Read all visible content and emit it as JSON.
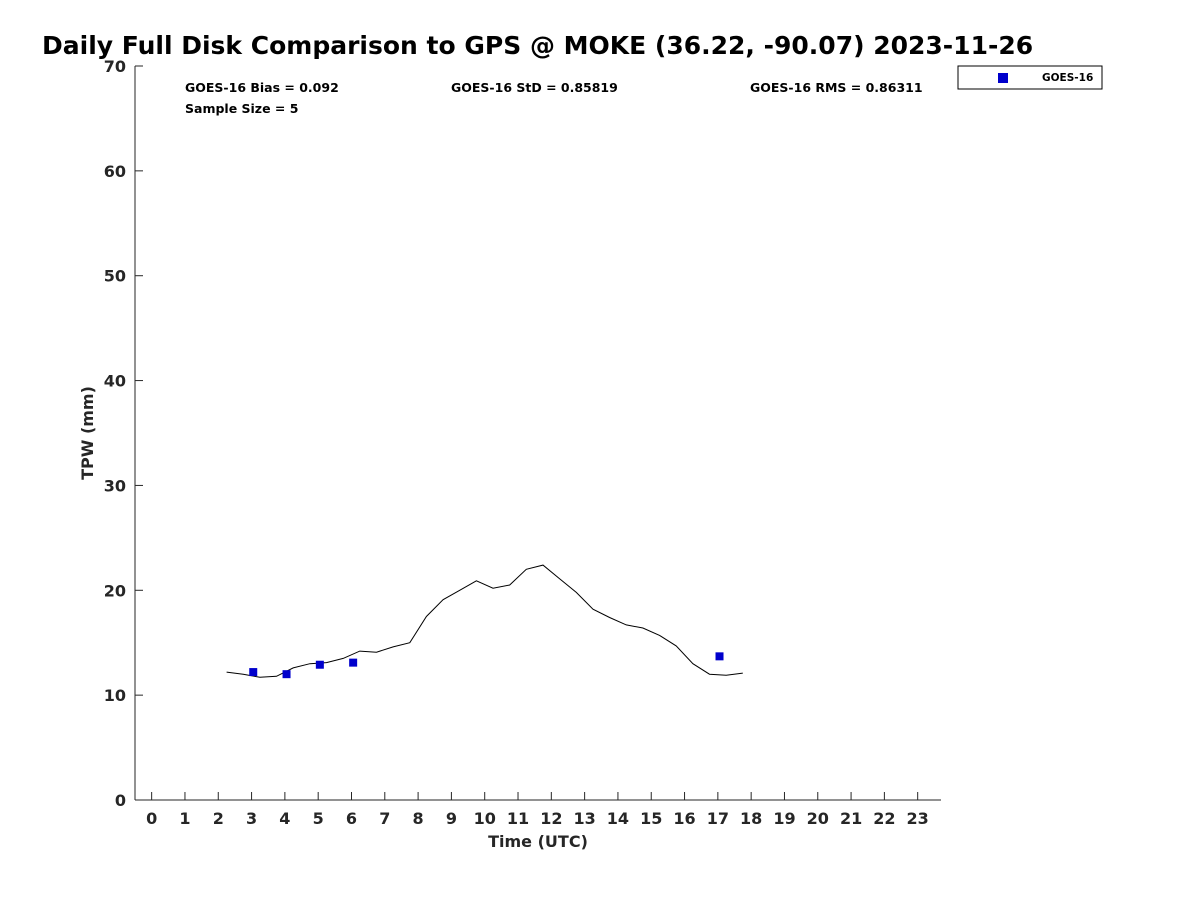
{
  "chart_data": {
    "type": "scatter",
    "title": "Daily Full Disk Comparison to GPS @ MOKE (36.22, -90.07) 2023-11-26",
    "xlabel": "Time (UTC)",
    "ylabel": "TPW (mm)",
    "xlim": [
      -0.5,
      23.7
    ],
    "ylim": [
      0,
      70
    ],
    "xticks": [
      "0",
      "1",
      "2",
      "3",
      "4",
      "5",
      "6",
      "7",
      "8",
      "9",
      "10",
      "11",
      "12",
      "13",
      "14",
      "15",
      "16",
      "17",
      "18",
      "19",
      "20",
      "21",
      "22",
      "23"
    ],
    "yticks": [
      "0",
      "10",
      "20",
      "30",
      "40",
      "50",
      "60",
      "70"
    ],
    "grid": false,
    "legend_position": "top-right outside",
    "stats": [
      "GOES-16 Bias = 0.092",
      "GOES-16 StD = 0.85819",
      "GOES-16 RMS = 0.86311",
      "Sample Size = 5"
    ],
    "series": [
      {
        "name": "GOES-16",
        "kind": "scatter",
        "marker": "square",
        "color": "#0000cc",
        "x": [
          3.05,
          4.05,
          5.05,
          6.05,
          17.05
        ],
        "y": [
          12.2,
          12.0,
          12.9,
          13.1,
          13.7
        ]
      },
      {
        "kind": "line",
        "color": "#000000",
        "x": [
          2.25,
          2.75,
          3.25,
          3.75,
          4.25,
          4.75,
          5.25,
          5.75,
          6.25,
          6.75,
          7.25,
          7.75,
          8.25,
          8.75,
          9.25,
          9.75,
          10.25,
          10.75,
          11.25,
          11.75,
          12.25,
          12.75,
          13.25,
          13.75,
          14.25,
          14.75,
          15.25,
          15.75,
          16.25,
          16.75,
          17.25,
          17.75
        ],
        "y": [
          12.2,
          12.0,
          11.7,
          11.8,
          12.6,
          13.0,
          13.1,
          13.5,
          14.2,
          14.1,
          14.6,
          15.0,
          17.5,
          19.1,
          20.0,
          20.9,
          20.2,
          20.5,
          22.0,
          22.4,
          21.1,
          19.8,
          18.2,
          17.4,
          16.7,
          16.4,
          15.7,
          14.7,
          13.0,
          12.0,
          11.9,
          12.1
        ]
      }
    ]
  }
}
